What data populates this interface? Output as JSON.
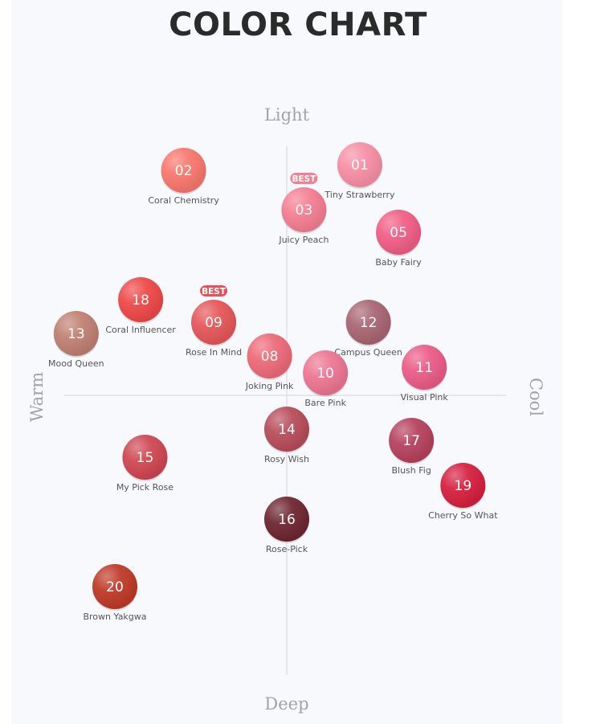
{
  "chart_data": {
    "type": "scatter",
    "title": "COLOR CHART",
    "axes": {
      "top": "Light",
      "bottom": "Deep",
      "left": "Warm",
      "right": "Cool"
    },
    "xlim": [
      -5,
      5
    ],
    "ylim": [
      -5,
      5
    ],
    "badge_label": "BEST",
    "points": [
      {
        "num": "01",
        "name": "Tiny Strawberry",
        "x": 1.7,
        "y": 4.1,
        "color": "#f78fa5",
        "best": false
      },
      {
        "num": "02",
        "name": "Coral Chemistry",
        "x": -2.4,
        "y": 4.0,
        "color": "#f8776c",
        "best": false
      },
      {
        "num": "03",
        "name": "Juicy Peach",
        "x": 0.4,
        "y": 3.3,
        "color": "#f57e92",
        "best": true
      },
      {
        "num": "05",
        "name": "Baby Fairy",
        "x": 2.6,
        "y": 2.9,
        "color": "#f15d86",
        "best": false
      },
      {
        "num": "18",
        "name": "Coral Influencer",
        "x": -3.4,
        "y": 1.7,
        "color": "#ee4847",
        "best": false
      },
      {
        "num": "09",
        "name": "Rose In Mind",
        "x": -1.7,
        "y": 1.3,
        "color": "#e55658",
        "best": true
      },
      {
        "num": "13",
        "name": "Mood Queen",
        "x": -4.9,
        "y": 1.1,
        "color": "#bf8072",
        "best": false
      },
      {
        "num": "12",
        "name": "Campus Queen",
        "x": 1.9,
        "y": 1.3,
        "color": "#a86672",
        "best": false
      },
      {
        "num": "08",
        "name": "Joking Pink",
        "x": -0.4,
        "y": 0.7,
        "color": "#ee6978",
        "best": false
      },
      {
        "num": "10",
        "name": "Bare Pink",
        "x": 0.9,
        "y": 0.4,
        "color": "#ed7592",
        "best": false
      },
      {
        "num": "11",
        "name": "Visual Pink",
        "x": 3.2,
        "y": 0.5,
        "color": "#ea5b88",
        "best": false
      },
      {
        "num": "14",
        "name": "Rosy Wish",
        "x": 0.0,
        "y": -0.6,
        "color": "#b84c5b",
        "best": false
      },
      {
        "num": "17",
        "name": "Blush Fig",
        "x": 2.9,
        "y": -0.8,
        "color": "#b6415d",
        "best": false
      },
      {
        "num": "15",
        "name": "My Pick Rose",
        "x": -3.3,
        "y": -1.1,
        "color": "#cf4652",
        "best": false
      },
      {
        "num": "19",
        "name": "Cherry So What",
        "x": 4.1,
        "y": -1.6,
        "color": "#d61f3e",
        "best": false
      },
      {
        "num": "16",
        "name": "Rose-Pick",
        "x": 0.0,
        "y": -2.2,
        "color": "#6e2631",
        "best": false
      },
      {
        "num": "20",
        "name": "Brown Yakgwa",
        "x": -4.0,
        "y": -3.4,
        "color": "#bf3927",
        "best": false
      }
    ]
  }
}
